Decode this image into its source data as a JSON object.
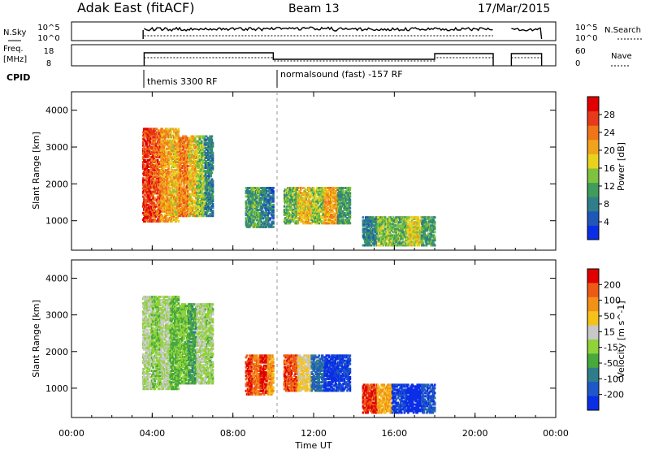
{
  "header": {
    "station": "Adak East (fitACF)",
    "beam": "Beam 13",
    "date": "17/Mar/2015"
  },
  "panels": {
    "nsky_label": "N.Sky",
    "nsky_ticks": [
      "10^5",
      "10^0"
    ],
    "nsearch_label": "N.Search",
    "nsearch_ticks": [
      "10^5",
      "10^0"
    ],
    "freq_label_1": "Freq.",
    "freq_label_2": "[MHz]",
    "freq_ticks": [
      "18",
      "8"
    ],
    "nave_label": "Nave",
    "nave_ticks": [
      "60",
      "0"
    ],
    "cpid_label": "CPID",
    "cpid_modes": [
      "themis 3300 RF",
      "normalsound (fast) -157 RF"
    ]
  },
  "time_axis": {
    "label": "Time UT",
    "ticks": [
      "00:00",
      "04:00",
      "08:00",
      "12:00",
      "16:00",
      "20:00",
      "00:00"
    ],
    "range_hours": [
      0,
      24
    ]
  },
  "colors": {
    "power_scale": [
      "#0a2ee6",
      "#1e57b8",
      "#2e7f8a",
      "#3f9c5a",
      "#7fc23f",
      "#e8d21e",
      "#f2a31c",
      "#f07418",
      "#e8391a",
      "#e00000"
    ],
    "velocity_scale": [
      "#0a2ee6",
      "#1f57c8",
      "#2f7c8a",
      "#47a83b",
      "#8fd23a",
      "#c8c8c8",
      "#f4c21a",
      "#f29018",
      "#ee5a16",
      "#e00000"
    ]
  },
  "chart_data": [
    {
      "type": "heatmap",
      "name": "power",
      "ylabel": "Slant Range [km]",
      "yticks": [
        "1000",
        "2000",
        "3000",
        "4000"
      ],
      "ylim": [
        200,
        4500
      ],
      "colorbar_label": "Power [dB]",
      "colorbar_ticks": [
        "4",
        "8",
        "12",
        "16",
        "20",
        "24",
        "28"
      ],
      "crange": [
        0,
        30
      ],
      "regions": [
        {
          "t0": 3.5,
          "t1": 5.3,
          "r0": 950,
          "r1": 3500,
          "values": [
            26,
            24,
            20,
            18
          ]
        },
        {
          "t0": 5.3,
          "t1": 7.0,
          "r0": 1100,
          "r1": 3300,
          "values": [
            22,
            18,
            14,
            8
          ]
        },
        {
          "t0": 8.6,
          "t1": 10.0,
          "r0": 800,
          "r1": 1900,
          "values": [
            10,
            12,
            8,
            6
          ]
        },
        {
          "t0": 10.5,
          "t1": 13.8,
          "r0": 900,
          "r1": 1900,
          "values": [
            12,
            18,
            14,
            20,
            10
          ]
        },
        {
          "t0": 14.4,
          "t1": 18.0,
          "r0": 300,
          "r1": 1100,
          "values": [
            8,
            14,
            12,
            16,
            10
          ]
        }
      ]
    },
    {
      "type": "heatmap",
      "name": "velocity",
      "ylabel": "Slant Range [km]",
      "yticks": [
        "1000",
        "2000",
        "3000",
        "4000"
      ],
      "ylim": [
        200,
        4500
      ],
      "colorbar_label": "Velocity [m s^-1]",
      "colorbar_ticks": [
        "200",
        "100",
        "50",
        "15",
        "-15",
        "-50",
        "-100",
        "-200"
      ],
      "crange": [
        -250,
        250
      ],
      "regions": [
        {
          "t0": 3.5,
          "t1": 5.3,
          "r0": 950,
          "r1": 3500,
          "values": [
            0,
            -30,
            5,
            -60
          ]
        },
        {
          "t0": 5.3,
          "t1": 7.0,
          "r0": 1100,
          "r1": 3300,
          "values": [
            -40,
            -80,
            0,
            -20
          ]
        },
        {
          "t0": 8.6,
          "t1": 10.0,
          "r0": 800,
          "r1": 1900,
          "values": [
            200,
            150,
            220,
            120
          ]
        },
        {
          "t0": 10.5,
          "t1": 13.8,
          "r0": 900,
          "r1": 1900,
          "values": [
            180,
            60,
            -150,
            -220,
            -200
          ]
        },
        {
          "t0": 14.4,
          "t1": 18.0,
          "r0": 300,
          "r1": 1100,
          "values": [
            200,
            100,
            -200,
            -240,
            -180
          ]
        }
      ]
    }
  ]
}
